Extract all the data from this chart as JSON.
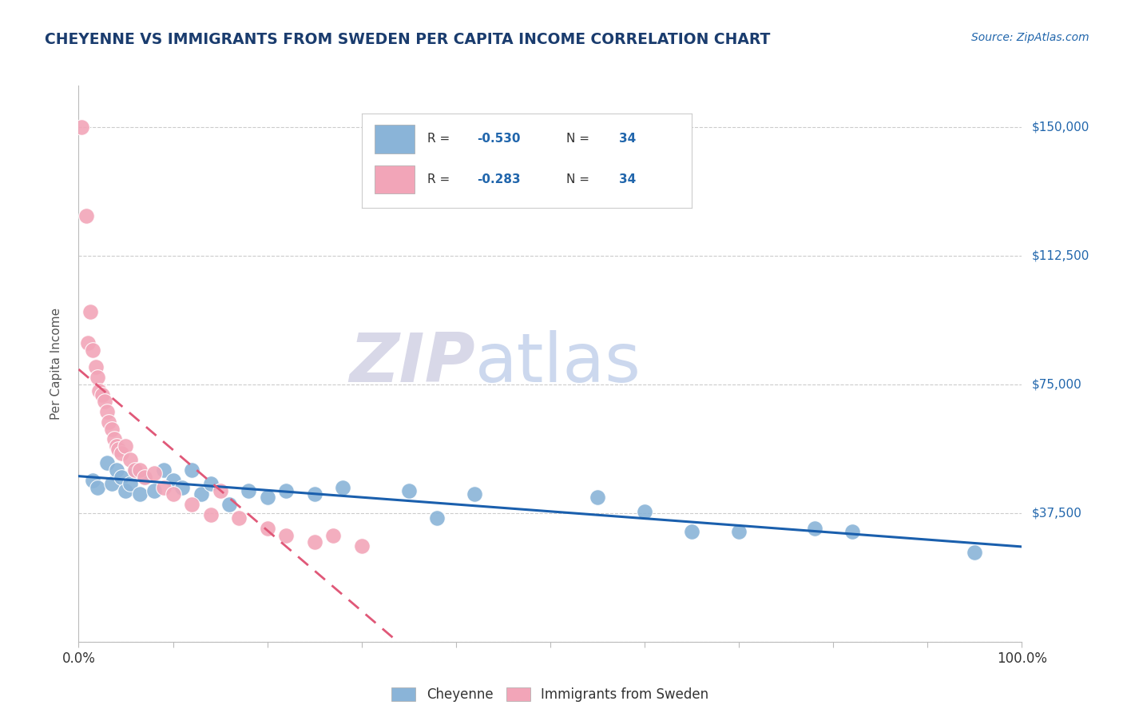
{
  "title": "CHEYENNE VS IMMIGRANTS FROM SWEDEN PER CAPITA INCOME CORRELATION CHART",
  "source": "Source: ZipAtlas.com",
  "ylabel": "Per Capita Income",
  "xlim": [
    0.0,
    100.0
  ],
  "ylim": [
    0,
    162000
  ],
  "yticks": [
    0,
    37500,
    75000,
    112500,
    150000
  ],
  "xticks": [
    0,
    10,
    20,
    30,
    40,
    50,
    60,
    70,
    80,
    90,
    100
  ],
  "legend_label_blue": "Cheyenne",
  "legend_label_pink": "Immigrants from Sweden",
  "blue_color": "#8ab4d8",
  "pink_color": "#f2a5b8",
  "blue_line_color": "#1a5fad",
  "pink_line_color": "#e05878",
  "title_color": "#1a3c6e",
  "source_color": "#2166ac",
  "axis_color": "#bbbbbb",
  "grid_color": "#cccccc",
  "blue_scatter_x": [
    1.5,
    2.0,
    3.0,
    3.5,
    4.0,
    4.5,
    5.0,
    5.5,
    6.0,
    6.5,
    7.0,
    8.0,
    9.0,
    10.0,
    11.0,
    12.0,
    13.0,
    14.0,
    16.0,
    18.0,
    20.0,
    22.0,
    25.0,
    28.0,
    35.0,
    38.0,
    42.0,
    55.0,
    60.0,
    65.0,
    70.0,
    78.0,
    82.0,
    95.0
  ],
  "blue_scatter_y": [
    47000,
    45000,
    52000,
    46000,
    50000,
    48000,
    44000,
    46000,
    50000,
    43000,
    48000,
    44000,
    50000,
    47000,
    45000,
    50000,
    43000,
    46000,
    40000,
    44000,
    42000,
    44000,
    43000,
    45000,
    44000,
    36000,
    43000,
    42000,
    38000,
    32000,
    32000,
    33000,
    32000,
    26000
  ],
  "pink_scatter_x": [
    0.3,
    0.8,
    1.0,
    1.2,
    1.5,
    1.8,
    2.0,
    2.2,
    2.5,
    2.8,
    3.0,
    3.2,
    3.5,
    3.8,
    4.0,
    4.2,
    4.5,
    5.0,
    5.5,
    6.0,
    6.5,
    7.0,
    8.0,
    9.0,
    10.0,
    12.0,
    14.0,
    15.0,
    17.0,
    20.0,
    22.0,
    25.0,
    27.0,
    30.0
  ],
  "pink_scatter_y": [
    150000,
    124000,
    87000,
    96000,
    85000,
    80000,
    77000,
    73000,
    72000,
    70000,
    67000,
    64000,
    62000,
    59000,
    57000,
    56000,
    55000,
    57000,
    53000,
    50000,
    50000,
    48000,
    49000,
    45000,
    43000,
    40000,
    37000,
    44000,
    36000,
    33000,
    31000,
    29000,
    31000,
    28000
  ],
  "background_color": "#ffffff"
}
